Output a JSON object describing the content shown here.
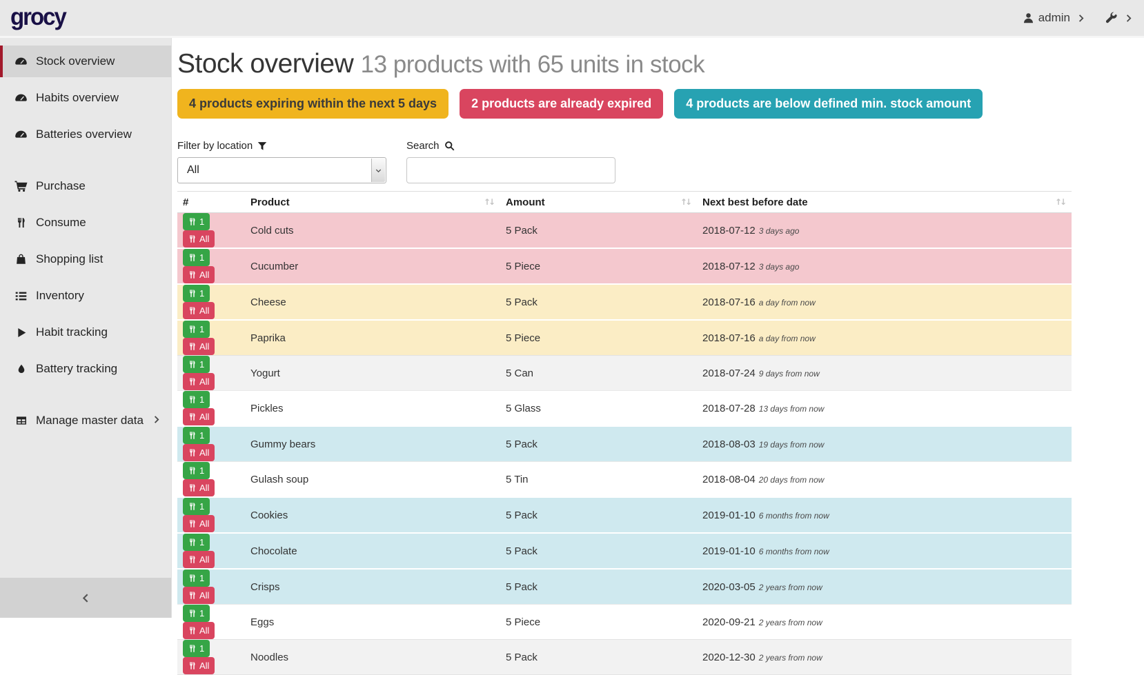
{
  "topbar": {
    "logo": "grocy",
    "user": "admin"
  },
  "sidebar": {
    "items": [
      {
        "label": "Stock overview",
        "icon": "gauge",
        "active": true
      },
      {
        "label": "Habits overview",
        "icon": "gauge"
      },
      {
        "label": "Batteries overview",
        "icon": "gauge"
      },
      {
        "label": "Purchase",
        "icon": "cart",
        "gap": true
      },
      {
        "label": "Consume",
        "icon": "utensils"
      },
      {
        "label": "Shopping list",
        "icon": "bag"
      },
      {
        "label": "Inventory",
        "icon": "list"
      },
      {
        "label": "Habit tracking",
        "icon": "play"
      },
      {
        "label": "Battery tracking",
        "icon": "droplet"
      },
      {
        "label": "Manage master data",
        "icon": "table",
        "gap": true,
        "chevron": true
      }
    ]
  },
  "header": {
    "title": "Stock overview",
    "subtitle": "13 products with 65 units in stock"
  },
  "badges": [
    {
      "text": "4 products expiring within the next 5 days",
      "bg": "#f0b41e",
      "fg": "#3a3a3a"
    },
    {
      "text": "2 products are already expired",
      "bg": "#d9455f",
      "fg": "#ffffff"
    },
    {
      "text": "4 products are below defined min. stock amount",
      "bg": "#27a2b2",
      "fg": "#ffffff"
    }
  ],
  "filters": {
    "location_label": "Filter by location",
    "location_value": "All",
    "search_label": "Search",
    "search_value": ""
  },
  "table": {
    "columns": [
      {
        "label": "#",
        "sortable": false
      },
      {
        "label": "Product",
        "sortable": true
      },
      {
        "label": "Amount",
        "sortable": true
      },
      {
        "label": "Next best before date",
        "sortable": true
      }
    ],
    "action_labels": {
      "one": "1",
      "all": "All"
    },
    "rows": [
      {
        "product": "Cold cuts",
        "amount": "5 Pack",
        "date": "2018-07-12",
        "relative": "3 days ago",
        "status": "expired"
      },
      {
        "product": "Cucumber",
        "amount": "5 Piece",
        "date": "2018-07-12",
        "relative": "3 days ago",
        "status": "expired"
      },
      {
        "product": "Cheese",
        "amount": "5 Pack",
        "date": "2018-07-16",
        "relative": "a day from now",
        "status": "expiring-soon"
      },
      {
        "product": "Paprika",
        "amount": "5 Piece",
        "date": "2018-07-16",
        "relative": "a day from now",
        "status": "expiring-soon"
      },
      {
        "product": "Yogurt",
        "amount": "5 Can",
        "date": "2018-07-24",
        "relative": "9 days from now",
        "status": "none"
      },
      {
        "product": "Pickles",
        "amount": "5 Glass",
        "date": "2018-07-28",
        "relative": "13 days from now",
        "status": "none"
      },
      {
        "product": "Gummy bears",
        "amount": "5 Pack",
        "date": "2018-08-03",
        "relative": "19 days from now",
        "status": "below-min"
      },
      {
        "product": "Gulash soup",
        "amount": "5 Tin",
        "date": "2018-08-04",
        "relative": "20 days from now",
        "status": "none"
      },
      {
        "product": "Cookies",
        "amount": "5 Pack",
        "date": "2019-01-10",
        "relative": "6 months from now",
        "status": "below-min"
      },
      {
        "product": "Chocolate",
        "amount": "5 Pack",
        "date": "2019-01-10",
        "relative": "6 months from now",
        "status": "below-min"
      },
      {
        "product": "Crisps",
        "amount": "5 Pack",
        "date": "2020-03-05",
        "relative": "2 years from now",
        "status": "below-min"
      },
      {
        "product": "Eggs",
        "amount": "5 Piece",
        "date": "2020-09-21",
        "relative": "2 years from now",
        "status": "none"
      },
      {
        "product": "Noodles",
        "amount": "5 Pack",
        "date": "2020-12-30",
        "relative": "2 years from now",
        "status": "none"
      }
    ]
  },
  "colors": {
    "accent": "#a2192b",
    "expired_row": "#f4c8ce",
    "expiring_row": "#fbedc5",
    "below_min_row": "#cfe9ef",
    "consume_one_button": "#36a546",
    "consume_all_button": "#d9455f"
  }
}
